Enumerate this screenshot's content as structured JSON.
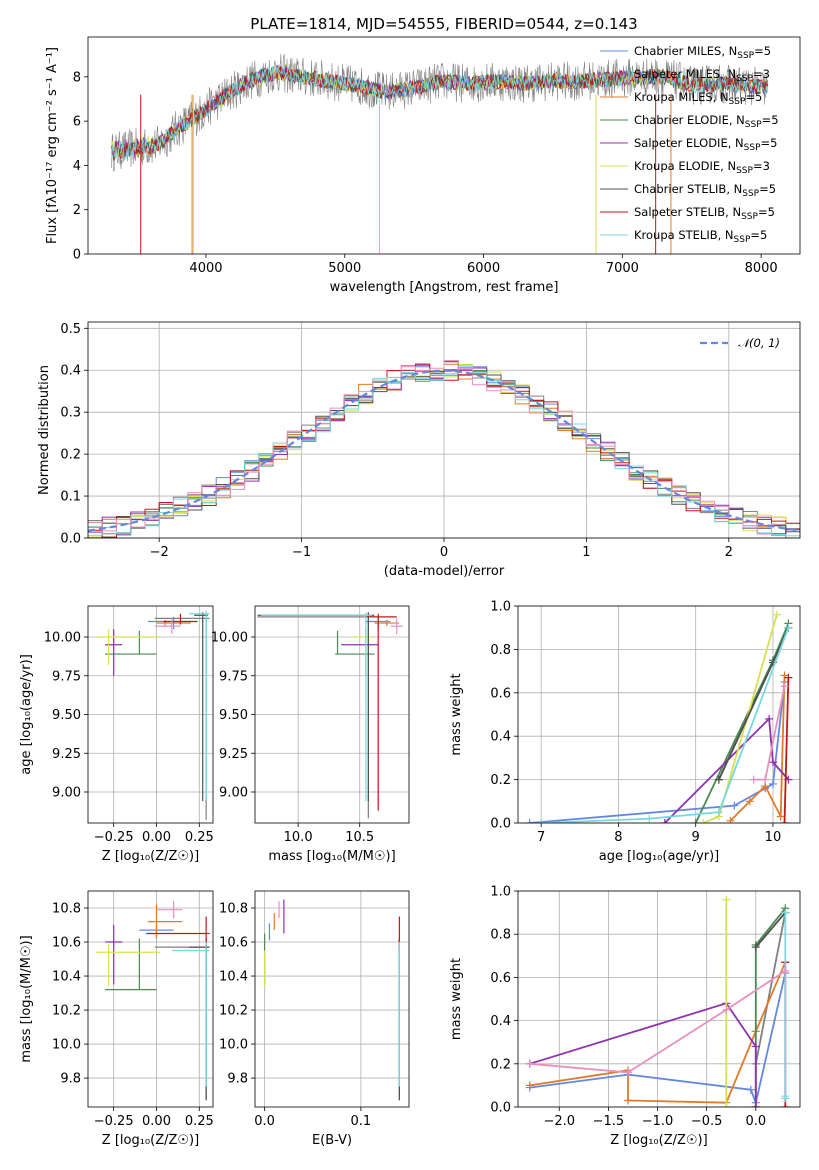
{
  "title": "PLATE=1814, MJD=54555, FIBERID=0544, z=0.143",
  "colors": [
    "#6488e0",
    "#808080",
    "#e07a28",
    "#4a8a50",
    "#9030b0",
    "#d8e050",
    "#505050",
    "#c01818",
    "#78d8e0",
    "#e890c0"
  ],
  "chart_data": [
    {
      "id": "spectrum",
      "type": "line",
      "xlabel": "wavelength [Angstrom, rest frame]",
      "ylabel": "Flux [fλ10⁻¹⁷ erg cm⁻² s⁻¹ A⁻¹]",
      "xlim": [
        3150,
        8280
      ],
      "ylim": [
        0,
        9.8
      ],
      "xticks": [
        4000,
        5000,
        6000,
        7000,
        8000
      ],
      "yticks": [
        0,
        2,
        4,
        6,
        8
      ],
      "grid": false,
      "legend_loc": "right",
      "legend": [
        "Chabrier MILES, N_SSP=5",
        "Salpeter MILES, N_SSP=3",
        "Kroupa MILES, N_SSP=5",
        "Chabrier ELODIE, N_SSP=5",
        "Salpeter ELODIE, N_SSP=5",
        "Kroupa ELODIE, N_SSP=3",
        "Chabrier STELIB, N_SSP=5",
        "Salpeter STELIB, N_SSP=5",
        "Kroupa STELIB, N_SSP=5"
      ],
      "legend_color_index": [
        0,
        1,
        2,
        3,
        4,
        5,
        6,
        7,
        8
      ],
      "continuum": {
        "x": [
          3320,
          3500,
          3650,
          3800,
          3950,
          4100,
          4300,
          4500,
          4700,
          4900,
          5100,
          5300,
          5500,
          5700,
          5900,
          6100,
          6300,
          6500,
          6700,
          6900,
          7100,
          7300,
          7500,
          7700,
          7900,
          8050
        ],
        "y": [
          4.6,
          4.8,
          4.9,
          5.7,
          6.3,
          7.0,
          7.8,
          8.2,
          8.0,
          7.8,
          7.6,
          7.3,
          7.5,
          7.8,
          7.7,
          7.8,
          7.7,
          7.8,
          7.8,
          7.9,
          8.0,
          8.0,
          7.6,
          7.7,
          7.6,
          7.5
        ]
      }
    },
    {
      "id": "residuals",
      "type": "histogram",
      "xlabel": "(data-model)/error",
      "ylabel": "Normed distribution",
      "xlim": [
        -2.5,
        2.5
      ],
      "ylim": [
        0,
        0.515
      ],
      "xticks": [
        -2,
        -1,
        0,
        1,
        2
      ],
      "yticks": [
        0.0,
        0.1,
        0.2,
        0.3,
        0.4,
        0.5
      ],
      "grid": true,
      "legend_loc": "upper right",
      "reference_label": "𝒩(0, 1)",
      "bin_width": 0.1
    },
    {
      "id": "age_vs_Z",
      "type": "errorbar",
      "xlabel": "Z [log₁₀(Z/Z☉)]",
      "ylabel": "age  [log₁₀(age/yr)]",
      "xlim": [
        -0.4,
        0.33
      ],
      "ylim": [
        8.8,
        10.2
      ],
      "xticks": [
        -0.25,
        0.0,
        0.25
      ],
      "yticks": [
        9.0,
        9.25,
        9.5,
        9.75,
        10.0
      ],
      "grid": true,
      "points": [
        {
          "x": 0.1,
          "y": 10.1,
          "xerr": [
            0.15,
            0.1
          ],
          "yerr": [
            0.05,
            0.03
          ],
          "c": 0
        },
        {
          "x": 0.29,
          "y": 10.12,
          "xerr": [
            0.3,
            0.02
          ],
          "yerr": [
            1.3,
            0.02
          ],
          "c": 1
        },
        {
          "x": 0.05,
          "y": 10.09,
          "xerr": [
            0.05,
            0.15
          ],
          "yerr": [
            0.02,
            0.02
          ],
          "c": 2
        },
        {
          "x": -0.1,
          "y": 9.89,
          "xerr": [
            0.2,
            0.1
          ],
          "yerr": [
            0.0,
            0.15
          ],
          "c": 3
        },
        {
          "x": -0.25,
          "y": 9.95,
          "xerr": [
            0.05,
            0.05
          ],
          "yerr": [
            0.2,
            0.1
          ],
          "c": 4
        },
        {
          "x": -0.28,
          "y": 10.0,
          "xerr": [
            0.07,
            0.3
          ],
          "yerr": [
            0.18,
            0.05
          ],
          "c": 5
        },
        {
          "x": 0.27,
          "y": 10.14,
          "xerr": [
            0.05,
            0.03
          ],
          "yerr": [
            1.2,
            0.02
          ],
          "c": 6
        },
        {
          "x": 0.14,
          "y": 10.1,
          "xerr": [
            0.1,
            0.1
          ],
          "yerr": [
            0.02,
            0.05
          ],
          "c": 7
        },
        {
          "x": 0.29,
          "y": 10.15,
          "xerr": [
            0.1,
            0.02
          ],
          "yerr": [
            1.2,
            0.02
          ],
          "c": 8
        },
        {
          "x": 0.09,
          "y": 10.07,
          "xerr": [
            0.1,
            0.05
          ],
          "yerr": [
            0.05,
            0.05
          ],
          "c": 9
        }
      ]
    },
    {
      "id": "age_vs_mass",
      "type": "errorbar",
      "xlabel": "mass [log₁₀(M/M☉)]",
      "ylabel": "",
      "xlim": [
        9.65,
        10.9
      ],
      "ylim": [
        8.8,
        10.2
      ],
      "xticks": [
        10.0,
        10.5
      ],
      "yticks": [
        9.0,
        9.25,
        9.5,
        9.75,
        10.0
      ],
      "grid": true,
      "points": [
        {
          "x": 10.65,
          "y": 10.1,
          "xerr": [
            0.1,
            0.1
          ],
          "yerr": [
            0.05,
            0.03
          ],
          "c": 0
        },
        {
          "x": 10.57,
          "y": 10.13,
          "xerr": [
            0.9,
            0.05
          ],
          "yerr": [
            1.3,
            0.02
          ],
          "c": 1
        },
        {
          "x": 10.72,
          "y": 10.09,
          "xerr": [
            0.1,
            0.1
          ],
          "yerr": [
            0.02,
            0.02
          ],
          "c": 2
        },
        {
          "x": 10.32,
          "y": 9.89,
          "xerr": [
            0.02,
            0.3
          ],
          "yerr": [
            0.0,
            0.15
          ],
          "c": 3
        },
        {
          "x": 10.55,
          "y": 9.95,
          "xerr": [
            0.2,
            0.1
          ],
          "yerr": [
            0.2,
            0.1
          ],
          "c": 4
        },
        {
          "x": 10.55,
          "y": 10.0,
          "xerr": [
            0.1,
            0.05
          ],
          "yerr": [
            0.2,
            0.05
          ],
          "c": 5
        },
        {
          "x": 10.57,
          "y": 10.14,
          "xerr": [
            0.9,
            0.05
          ],
          "yerr": [
            1.2,
            0.02
          ],
          "c": 6
        },
        {
          "x": 10.65,
          "y": 10.13,
          "xerr": [
            0.1,
            0.15
          ],
          "yerr": [
            1.25,
            0.02
          ],
          "c": 7
        },
        {
          "x": 10.55,
          "y": 10.14,
          "xerr": [
            0.85,
            0.05
          ],
          "yerr": [
            1.2,
            0.02
          ],
          "c": 8
        },
        {
          "x": 10.8,
          "y": 10.07,
          "xerr": [
            0.05,
            0.05
          ],
          "yerr": [
            0.05,
            0.05
          ],
          "c": 9
        }
      ]
    },
    {
      "id": "weight_vs_age",
      "type": "line",
      "xlabel": "age  [log₁₀(age/yr)]",
      "ylabel": "mass weight",
      "xlim": [
        6.7,
        10.35
      ],
      "ylim": [
        0,
        1.0
      ],
      "xticks": [
        7,
        8,
        9,
        10
      ],
      "yticks": [
        0.0,
        0.2,
        0.4,
        0.6,
        0.8,
        1.0
      ],
      "grid": true,
      "series": [
        {
          "c": 0,
          "x": [
            6.85,
            9.5,
            9.9,
            10.0,
            10.15
          ],
          "y": [
            0.0,
            0.08,
            0.16,
            0.18,
            0.65
          ]
        },
        {
          "c": 1,
          "x": [
            9.3,
            10.2
          ],
          "y": [
            0.2,
            0.9
          ]
        },
        {
          "c": 2,
          "x": [
            9.45,
            9.7,
            9.9,
            10.1,
            10.15
          ],
          "y": [
            0.01,
            0.1,
            0.17,
            0.03,
            0.68
          ]
        },
        {
          "c": 3,
          "x": [
            9.0,
            10.0,
            10.2
          ],
          "y": [
            0.0,
            0.75,
            0.92
          ]
        },
        {
          "c": 4,
          "x": [
            8.6,
            9.95,
            10.0,
            10.2
          ],
          "y": [
            0.0,
            0.48,
            0.28,
            0.2
          ]
        },
        {
          "c": 5,
          "x": [
            9.1,
            9.3,
            10.05
          ],
          "y": [
            0.0,
            0.03,
            0.96
          ]
        },
        {
          "c": 6,
          "x": [
            9.3,
            10.0,
            10.2
          ],
          "y": [
            0.2,
            0.74,
            0.9
          ]
        },
        {
          "c": 7,
          "x": [
            10.15,
            10.2
          ],
          "y": [
            0.0,
            0.67
          ]
        },
        {
          "c": 8,
          "x": [
            7.0,
            8.4,
            9.3,
            10.2
          ],
          "y": [
            0.0,
            0.02,
            0.05,
            0.9
          ]
        },
        {
          "c": 9,
          "x": [
            9.75,
            9.9,
            10.15
          ],
          "y": [
            0.2,
            0.2,
            0.63
          ]
        }
      ]
    },
    {
      "id": "mass_vs_Z",
      "type": "errorbar",
      "xlabel": "Z [log₁₀(Z/Z☉)]",
      "ylabel": "mass [log₁₀(M/M☉)]",
      "xlim": [
        -0.4,
        0.33
      ],
      "ylim": [
        9.63,
        10.9
      ],
      "xticks": [
        -0.25,
        0.0,
        0.25
      ],
      "yticks": [
        9.8,
        10.0,
        10.2,
        10.4,
        10.6,
        10.8
      ],
      "grid": true,
      "points": [
        {
          "x": 0.0,
          "y": 10.67,
          "xerr": [
            0.1,
            0.1
          ],
          "yerr": [
            0.05,
            0.03
          ],
          "c": 0
        },
        {
          "x": 0.29,
          "y": 10.57,
          "xerr": [
            0.3,
            0.02
          ],
          "yerr": [
            0.9,
            0.05
          ],
          "c": 1
        },
        {
          "x": 0.0,
          "y": 10.72,
          "xerr": [
            0.05,
            0.15
          ],
          "yerr": [
            0.1,
            0.1
          ],
          "c": 2
        },
        {
          "x": -0.1,
          "y": 10.32,
          "xerr": [
            0.2,
            0.1
          ],
          "yerr": [
            0.0,
            0.3
          ],
          "c": 3
        },
        {
          "x": -0.25,
          "y": 10.6,
          "xerr": [
            0.05,
            0.05
          ],
          "yerr": [
            0.25,
            0.1
          ],
          "c": 4
        },
        {
          "x": -0.28,
          "y": 10.54,
          "xerr": [
            0.07,
            0.3
          ],
          "yerr": [
            0.2,
            0.05
          ],
          "c": 5
        },
        {
          "x": 0.29,
          "y": 10.57,
          "xerr": [
            0.1,
            0.02
          ],
          "yerr": [
            0.9,
            0.05
          ],
          "c": 6
        },
        {
          "x": 0.29,
          "y": 10.65,
          "xerr": [
            0.35,
            0.02
          ],
          "yerr": [
            0.1,
            0.1
          ],
          "c": 7
        },
        {
          "x": 0.29,
          "y": 10.55,
          "xerr": [
            0.2,
            0.02
          ],
          "yerr": [
            0.8,
            0.05
          ],
          "c": 8
        },
        {
          "x": 0.1,
          "y": 10.79,
          "xerr": [
            0.1,
            0.05
          ],
          "yerr": [
            0.05,
            0.05
          ],
          "c": 9
        }
      ]
    },
    {
      "id": "mass_vs_ebv",
      "type": "errorbar",
      "xlabel": "E(B-V)",
      "ylabel": "",
      "xlim": [
        -0.01,
        0.15
      ],
      "ylim": [
        9.63,
        10.9
      ],
      "xticks": [
        0.0,
        0.1
      ],
      "yticks": [
        9.8,
        10.0,
        10.2,
        10.4,
        10.6,
        10.8
      ],
      "grid": true,
      "points": [
        {
          "x": 0.005,
          "y": 10.66,
          "xerr": [
            0,
            0
          ],
          "yerr": [
            0.05,
            0.05
          ],
          "c": 0
        },
        {
          "x": 0.14,
          "y": 10.57,
          "xerr": [
            0,
            0
          ],
          "yerr": [
            0.9,
            0.05
          ],
          "c": 1
        },
        {
          "x": 0.01,
          "y": 10.72,
          "xerr": [
            0,
            0
          ],
          "yerr": [
            0.05,
            0.05
          ],
          "c": 2
        },
        {
          "x": 0.0,
          "y": 10.55,
          "xerr": [
            0,
            0
          ],
          "yerr": [
            0.2,
            0.1
          ],
          "c": 3
        },
        {
          "x": 0.02,
          "y": 10.75,
          "xerr": [
            0,
            0
          ],
          "yerr": [
            0.1,
            0.1
          ],
          "c": 4
        },
        {
          "x": 0.0,
          "y": 10.45,
          "xerr": [
            0,
            0
          ],
          "yerr": [
            0.12,
            0.1
          ],
          "c": 5
        },
        {
          "x": 0.14,
          "y": 10.57,
          "xerr": [
            0,
            0
          ],
          "yerr": [
            0.9,
            0.05
          ],
          "c": 6
        },
        {
          "x": 0.14,
          "y": 10.65,
          "xerr": [
            0,
            0
          ],
          "yerr": [
            0.1,
            0.1
          ],
          "c": 7
        },
        {
          "x": 0.14,
          "y": 10.55,
          "xerr": [
            0,
            0
          ],
          "yerr": [
            0.8,
            0.05
          ],
          "c": 8
        },
        {
          "x": 0.015,
          "y": 10.79,
          "xerr": [
            0,
            0
          ],
          "yerr": [
            0.05,
            0.05
          ],
          "c": 9
        }
      ]
    },
    {
      "id": "weight_vs_Z",
      "type": "line",
      "xlabel": "Z [log₁₀(Z/Z☉)]",
      "ylabel": "mass weight",
      "xlim": [
        -2.42,
        0.45
      ],
      "ylim": [
        0,
        1.0
      ],
      "xticks": [
        -2.0,
        -1.5,
        -1.0,
        -0.5,
        0.0
      ],
      "yticks": [
        0.0,
        0.2,
        0.4,
        0.6,
        0.8,
        1.0
      ],
      "grid": true,
      "series": [
        {
          "c": 0,
          "x": [
            -2.3,
            -1.3,
            -0.05,
            0.0,
            0.3
          ],
          "y": [
            0.09,
            0.15,
            0.08,
            0.02,
            0.62
          ]
        },
        {
          "c": 1,
          "x": [
            0.0,
            0.3
          ],
          "y": [
            0.2,
            0.9
          ]
        },
        {
          "c": 2,
          "x": [
            -2.3,
            -1.3,
            -1.3,
            -0.3,
            0.0,
            0.3
          ],
          "y": [
            0.1,
            0.17,
            0.03,
            0.02,
            0.35,
            0.67
          ]
        },
        {
          "c": 3,
          "x": [
            0.0,
            0.0,
            0.3
          ],
          "y": [
            0.0,
            0.75,
            0.92
          ]
        },
        {
          "c": 4,
          "x": [
            -2.3,
            -0.3,
            0.0,
            0.0
          ],
          "y": [
            0.2,
            0.48,
            0.28,
            0.0
          ]
        },
        {
          "c": 5,
          "x": [
            -0.3,
            -0.3
          ],
          "y": [
            0.0,
            0.96
          ]
        },
        {
          "c": 6,
          "x": [
            0.0,
            0.3
          ],
          "y": [
            0.74,
            0.9
          ]
        },
        {
          "c": 7,
          "x": [
            0.3,
            0.3
          ],
          "y": [
            0.0,
            0.67
          ]
        },
        {
          "c": 8,
          "x": [
            0.3,
            0.3,
            0.3
          ],
          "y": [
            0.04,
            0.9,
            0.05
          ]
        },
        {
          "c": 9,
          "x": [
            -2.3,
            -1.3,
            -0.3,
            0.3
          ],
          "y": [
            0.2,
            0.16,
            0.45,
            0.63
          ]
        }
      ]
    }
  ]
}
